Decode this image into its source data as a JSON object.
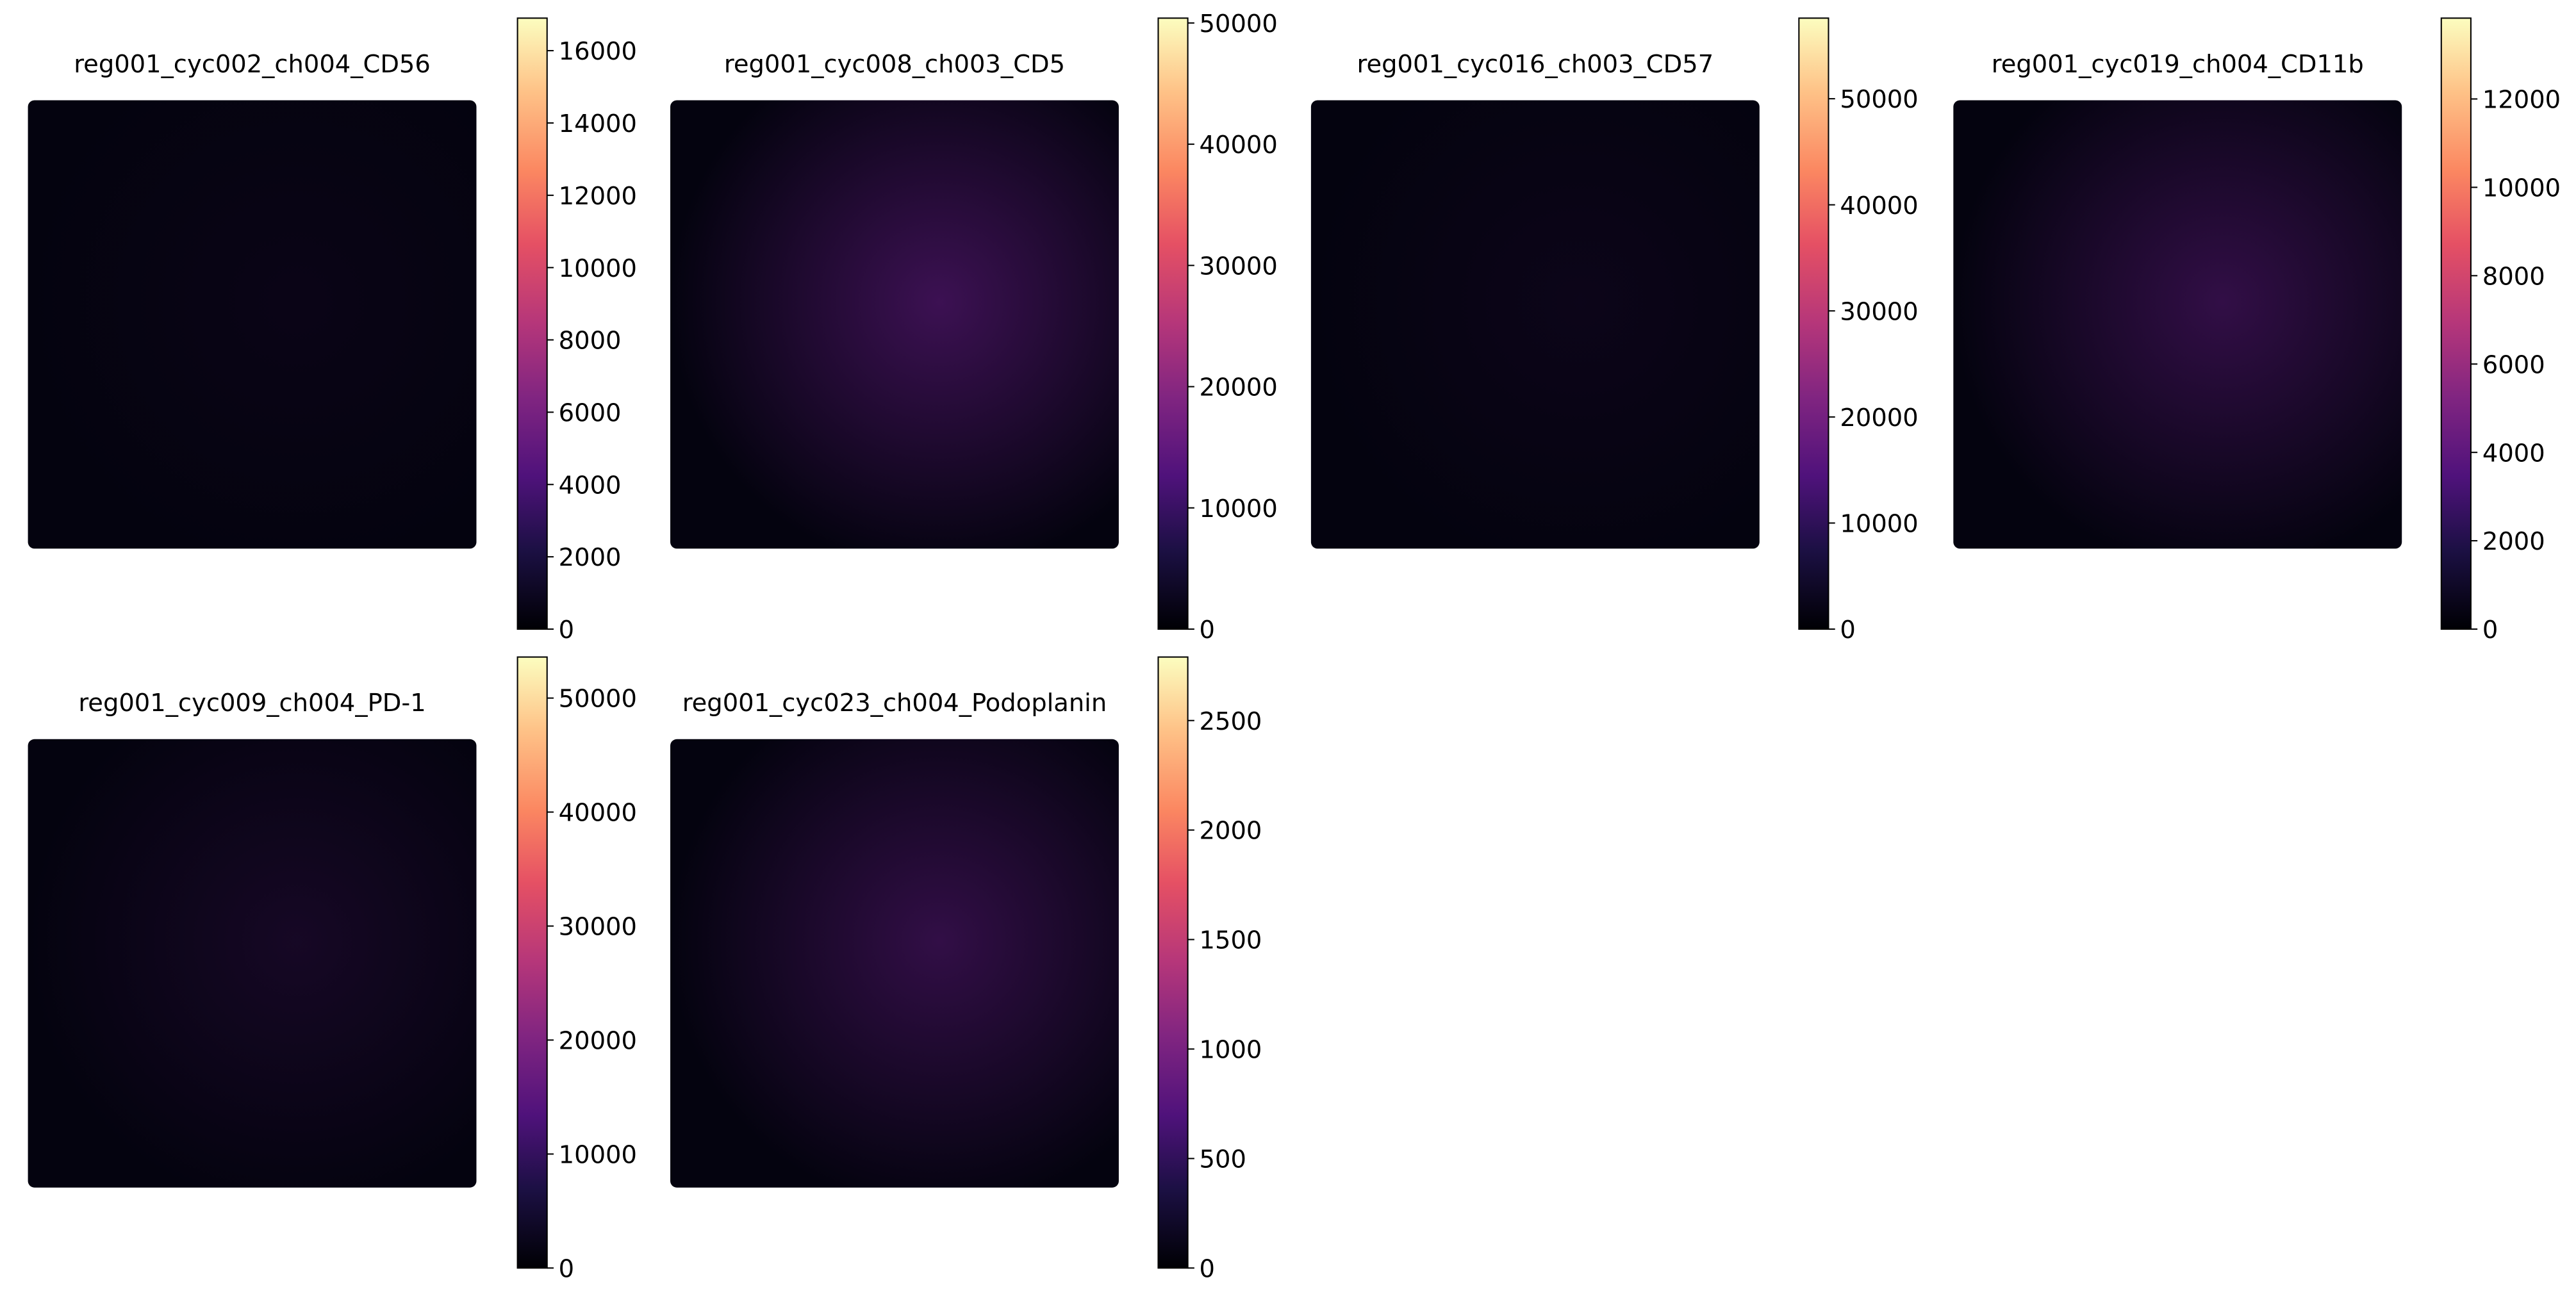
{
  "chart_data": [
    {
      "type": "image",
      "title": "reg001_cyc002_ch004_CD56",
      "colormap": "magma",
      "clim": [
        0,
        16900
      ],
      "ticks": [
        0,
        2000,
        4000,
        6000,
        8000,
        10000,
        12000,
        14000,
        16000
      ]
    },
    {
      "type": "image",
      "title": "reg001_cyc008_ch003_CD5",
      "colormap": "magma",
      "clim": [
        0,
        50400
      ],
      "ticks": [
        0,
        10000,
        20000,
        30000,
        40000,
        50000
      ]
    },
    {
      "type": "image",
      "title": "reg001_cyc016_ch003_CD57",
      "colormap": "magma",
      "clim": [
        0,
        57600
      ],
      "ticks": [
        0,
        10000,
        20000,
        30000,
        40000,
        50000
      ]
    },
    {
      "type": "image",
      "title": "reg001_cyc019_ch004_CD11b",
      "colormap": "magma",
      "clim": [
        0,
        13830
      ],
      "ticks": [
        0,
        2000,
        4000,
        6000,
        8000,
        10000,
        12000
      ]
    },
    {
      "type": "image",
      "title": "reg001_cyc009_ch004_PD-1",
      "colormap": "magma",
      "clim": [
        0,
        53600
      ],
      "ticks": [
        0,
        10000,
        20000,
        30000,
        40000,
        50000
      ]
    },
    {
      "type": "image",
      "title": "reg001_cyc023_ch004_Podoplanin",
      "colormap": "magma",
      "clim": [
        0,
        2790
      ],
      "ticks": [
        0,
        500,
        1000,
        1500,
        2000,
        2500
      ]
    }
  ]
}
